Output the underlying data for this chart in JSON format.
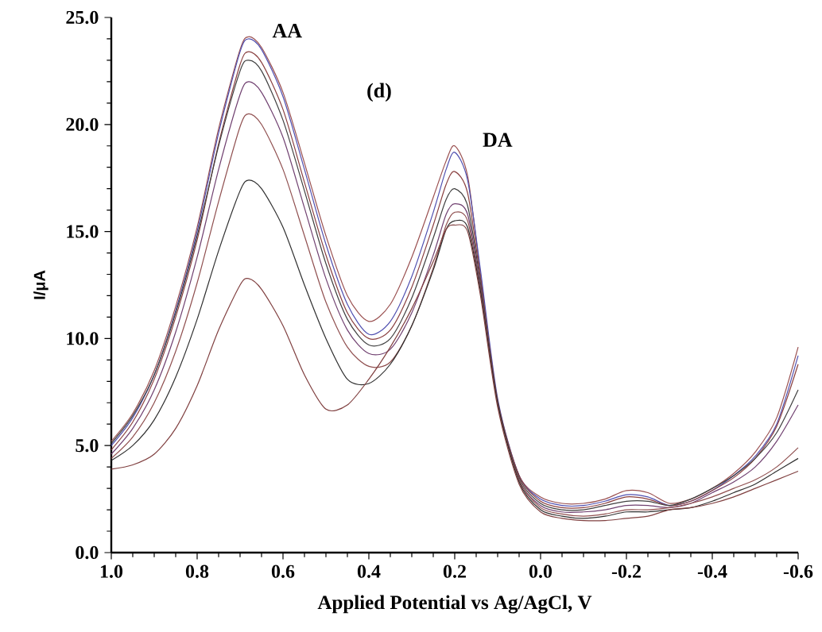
{
  "chart_data": {
    "type": "line",
    "xlabel": "Applied Potential vs Ag/AgCl, V",
    "ylabel": "I/μA",
    "x": [
      1.0,
      0.95,
      0.9,
      0.85,
      0.8,
      0.75,
      0.7,
      0.68,
      0.65,
      0.6,
      0.55,
      0.5,
      0.45,
      0.4,
      0.35,
      0.3,
      0.25,
      0.22,
      0.2,
      0.17,
      0.14,
      0.1,
      0.05,
      0.0,
      -0.05,
      -0.1,
      -0.15,
      -0.2,
      -0.25,
      -0.3,
      -0.35,
      -0.4,
      -0.45,
      -0.5,
      -0.55,
      -0.6
    ],
    "series": [
      {
        "color": "#9a5050",
        "values": [
          5.2,
          6.5,
          8.5,
          11.5,
          15.2,
          19.8,
          23.5,
          24.1,
          23.6,
          21.5,
          18.2,
          14.8,
          12.0,
          10.8,
          11.6,
          13.8,
          16.6,
          18.3,
          19.0,
          17.6,
          13.0,
          7.0,
          3.6,
          2.6,
          2.3,
          2.3,
          2.5,
          2.9,
          2.8,
          2.3,
          2.5,
          3.0,
          3.7,
          4.7,
          6.3,
          9.6
        ]
      },
      {
        "color": "#5050b0",
        "values": [
          5.0,
          6.3,
          8.3,
          11.3,
          15.0,
          19.6,
          23.4,
          24.0,
          23.5,
          21.3,
          17.9,
          14.4,
          11.6,
          10.2,
          10.8,
          12.9,
          15.9,
          17.9,
          18.7,
          17.4,
          13.2,
          7.2,
          3.6,
          2.5,
          2.2,
          2.2,
          2.4,
          2.7,
          2.6,
          2.2,
          2.4,
          2.9,
          3.6,
          4.5,
          6.0,
          9.2
        ]
      },
      {
        "color": "#8a4040",
        "values": [
          4.8,
          6.1,
          8.1,
          11.0,
          14.6,
          19.1,
          22.8,
          23.4,
          22.9,
          20.7,
          17.3,
          13.9,
          11.2,
          10.0,
          10.4,
          12.4,
          15.3,
          17.2,
          17.8,
          16.8,
          12.8,
          7.1,
          3.6,
          2.4,
          2.1,
          2.1,
          2.3,
          2.6,
          2.5,
          2.2,
          2.4,
          2.9,
          3.5,
          4.4,
          5.9,
          8.8
        ]
      },
      {
        "color": "#404040",
        "values": [
          5.1,
          6.4,
          8.3,
          11.2,
          14.8,
          19.0,
          22.5,
          23.0,
          22.5,
          20.2,
          16.9,
          13.5,
          10.9,
          9.7,
          10.0,
          11.9,
          14.7,
          16.5,
          17.0,
          16.2,
          12.6,
          7.0,
          3.5,
          2.3,
          2.0,
          2.0,
          2.2,
          2.4,
          2.4,
          2.2,
          2.5,
          3.0,
          3.6,
          4.4,
          5.6,
          7.6
        ]
      },
      {
        "color": "#704070",
        "values": [
          4.6,
          5.8,
          7.6,
          10.3,
          13.8,
          17.9,
          21.4,
          22.0,
          21.5,
          19.4,
          16.1,
          12.8,
          10.4,
          9.3,
          9.5,
          11.2,
          13.9,
          15.8,
          16.3,
          15.8,
          12.4,
          7.0,
          3.4,
          2.2,
          1.9,
          1.9,
          2.0,
          2.2,
          2.2,
          2.1,
          2.3,
          2.8,
          3.3,
          4.0,
          5.2,
          6.9
        ]
      },
      {
        "color": "#905050",
        "values": [
          4.4,
          5.4,
          7.0,
          9.4,
          12.6,
          16.4,
          19.9,
          20.5,
          20.0,
          17.9,
          14.8,
          11.7,
          9.6,
          8.7,
          8.9,
          10.6,
          13.3,
          15.3,
          15.9,
          15.5,
          12.3,
          7.0,
          3.4,
          2.1,
          1.8,
          1.7,
          1.8,
          2.0,
          2.0,
          2.1,
          2.3,
          2.6,
          3.0,
          3.4,
          4.0,
          4.9
        ]
      },
      {
        "color": "#303030",
        "values": [
          4.3,
          5.0,
          6.2,
          8.2,
          10.9,
          14.1,
          16.9,
          17.4,
          17.0,
          15.2,
          12.5,
          10.0,
          8.1,
          7.9,
          8.8,
          10.6,
          13.2,
          15.1,
          15.5,
          15.2,
          12.2,
          7.0,
          3.3,
          2.0,
          1.7,
          1.6,
          1.7,
          1.9,
          1.9,
          2.0,
          2.1,
          2.4,
          2.8,
          3.2,
          3.8,
          4.4
        ]
      },
      {
        "color": "#804040",
        "values": [
          3.9,
          4.1,
          4.6,
          5.8,
          7.8,
          10.4,
          12.5,
          12.8,
          12.3,
          10.6,
          8.3,
          6.7,
          6.9,
          8.1,
          9.6,
          11.4,
          13.6,
          15.1,
          15.3,
          15.0,
          12.0,
          6.8,
          3.2,
          1.9,
          1.6,
          1.5,
          1.5,
          1.6,
          1.7,
          2.0,
          2.1,
          2.3,
          2.6,
          3.0,
          3.4,
          3.8
        ]
      }
    ],
    "xlim": [
      1.0,
      -0.6
    ],
    "ylim": [
      0,
      25
    ],
    "xticks": [
      {
        "value": 1.0,
        "label": "1.0"
      },
      {
        "value": 0.8,
        "label": "0.8"
      },
      {
        "value": 0.6,
        "label": "0.6"
      },
      {
        "value": 0.4,
        "label": "0.4"
      },
      {
        "value": 0.2,
        "label": "0.2"
      },
      {
        "value": 0.0,
        "label": "0.0"
      },
      {
        "value": -0.2,
        "label": "-0.2"
      },
      {
        "value": -0.4,
        "label": "-0.4"
      },
      {
        "value": -0.6,
        "label": "-0.6"
      }
    ],
    "yticks": [
      {
        "value": 0,
        "label": "0.0"
      },
      {
        "value": 5,
        "label": "5.0"
      },
      {
        "value": 10,
        "label": "10.0"
      },
      {
        "value": 15,
        "label": "15.0"
      },
      {
        "value": 20,
        "label": "20.0"
      },
      {
        "value": 25,
        "label": "25.0"
      }
    ],
    "annotations": [
      {
        "text": "AA",
        "x": 0.69,
        "y": 24.1
      },
      "(d)",
      {
        "text": "DA",
        "x": 0.2,
        "y": 19.0
      }
    ],
    "marker": "none",
    "grid": false
  }
}
